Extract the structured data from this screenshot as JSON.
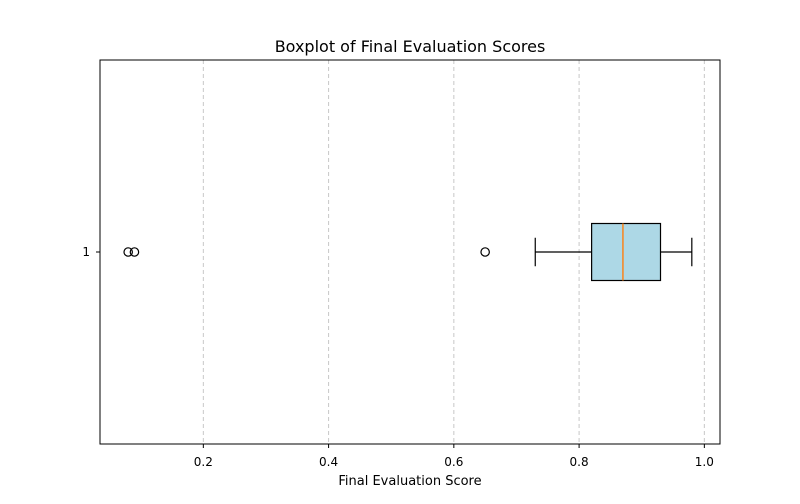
{
  "chart_data": {
    "type": "boxplot",
    "orientation": "horizontal",
    "title": "Boxplot of Final Evaluation Scores",
    "xlabel": "Final Evaluation Score",
    "ylabel": "",
    "xlim": [
      0.035,
      1.025
    ],
    "xticks": [
      0.2,
      0.4,
      0.6,
      0.8,
      1.0
    ],
    "xtick_labels": [
      "0.2",
      "0.4",
      "0.6",
      "0.8",
      "1.0"
    ],
    "yticks": [
      "1"
    ],
    "grid": "x-axis, dashed",
    "boxes": [
      {
        "label": "1",
        "whisker_low": 0.73,
        "q1": 0.82,
        "median": 0.87,
        "q3": 0.93,
        "whisker_high": 0.98,
        "outliers": [
          0.08,
          0.09,
          0.65
        ]
      }
    ],
    "colors": {
      "box_fill": "#add8e6",
      "median": "#ff7f0e",
      "grid": "#c8c8c8"
    }
  }
}
